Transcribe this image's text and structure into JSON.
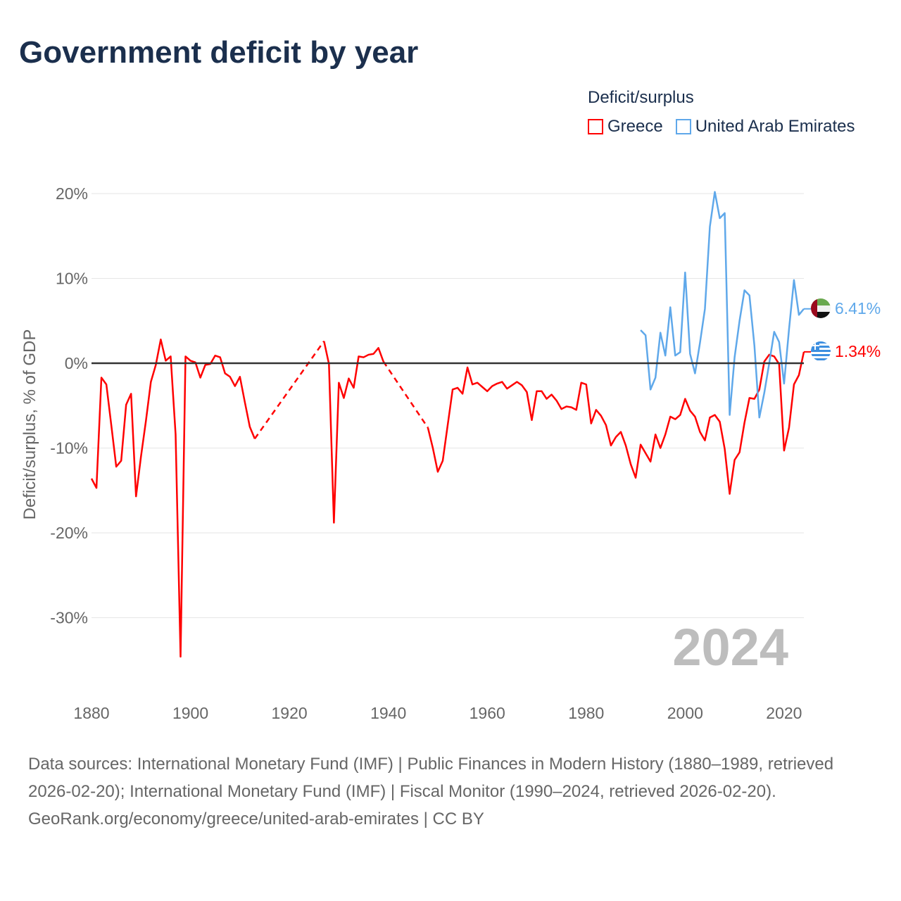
{
  "chart_data": {
    "type": "line",
    "title": "Government deficit by year",
    "xlabel": "",
    "ylabel": "Deficit/surplus, % of GDP",
    "xlim": [
      1880,
      2024
    ],
    "ylim": [
      -35,
      22
    ],
    "x_ticks": [
      "1880",
      "1900",
      "1920",
      "1940",
      "1960",
      "1980",
      "2000",
      "2020"
    ],
    "x_tick_values": [
      1880,
      1900,
      1920,
      1940,
      1960,
      1980,
      2000,
      2020
    ],
    "y_ticks": [
      "20%",
      "10%",
      "0%",
      "-10%",
      "-20%",
      "-30%"
    ],
    "y_tick_values": [
      20,
      10,
      0,
      -10,
      -20,
      -30
    ],
    "grid": true,
    "legend_title": "Deficit/surplus",
    "legend_position": "top-right",
    "year_watermark": "2024",
    "series": [
      {
        "name": "Greece",
        "color": "#ff0000",
        "end_label": "1.34%",
        "flag": "greece",
        "points": [
          [
            1880,
            -13.6
          ],
          [
            1881,
            -14.7
          ],
          [
            1882,
            -1.7
          ],
          [
            1883,
            -2.5
          ],
          [
            1884,
            -7.3
          ],
          [
            1885,
            -12.2
          ],
          [
            1886,
            -11.5
          ],
          [
            1887,
            -4.9
          ],
          [
            1888,
            -3.6
          ],
          [
            1889,
            -15.7
          ],
          [
            1890,
            -11.0
          ],
          [
            1891,
            -6.8
          ],
          [
            1892,
            -2.2
          ],
          [
            1893,
            -0.2
          ],
          [
            1894,
            2.8
          ],
          [
            1895,
            0.3
          ],
          [
            1896,
            0.8
          ],
          [
            1897,
            -8.4
          ],
          [
            1898,
            -34.6
          ],
          [
            1899,
            0.8
          ],
          [
            1900,
            0.3
          ],
          [
            1901,
            0.1
          ],
          [
            1902,
            -1.7
          ],
          [
            1903,
            -0.2
          ],
          [
            1904,
            -0.1
          ],
          [
            1905,
            0.9
          ],
          [
            1906,
            0.7
          ],
          [
            1907,
            -1.2
          ],
          [
            1908,
            -1.6
          ],
          [
            1909,
            -2.7
          ],
          [
            1910,
            -1.6
          ],
          [
            1911,
            -4.6
          ],
          [
            1912,
            -7.5
          ],
          [
            1913,
            -8.9
          ],
          [
            1927,
            2.6
          ],
          [
            1928,
            -0.1
          ],
          [
            1929,
            -18.8
          ],
          [
            1930,
            -2.3
          ],
          [
            1931,
            -4.1
          ],
          [
            1932,
            -1.8
          ],
          [
            1933,
            -2.9
          ],
          [
            1934,
            0.8
          ],
          [
            1935,
            0.7
          ],
          [
            1936,
            1.0
          ],
          [
            1937,
            1.1
          ],
          [
            1938,
            1.8
          ],
          [
            1939,
            0.2
          ],
          [
            1948,
            -7.6
          ],
          [
            1949,
            -10.0
          ],
          [
            1950,
            -12.8
          ],
          [
            1951,
            -11.5
          ],
          [
            1952,
            -7.3
          ],
          [
            1953,
            -3.1
          ],
          [
            1954,
            -2.9
          ],
          [
            1955,
            -3.6
          ],
          [
            1956,
            -0.5
          ],
          [
            1957,
            -2.5
          ],
          [
            1958,
            -2.3
          ],
          [
            1959,
            -2.8
          ],
          [
            1960,
            -3.3
          ],
          [
            1961,
            -2.7
          ],
          [
            1962,
            -2.4
          ],
          [
            1963,
            -2.2
          ],
          [
            1964,
            -3.0
          ],
          [
            1965,
            -2.6
          ],
          [
            1966,
            -2.2
          ],
          [
            1967,
            -2.6
          ],
          [
            1968,
            -3.4
          ],
          [
            1969,
            -6.7
          ],
          [
            1970,
            -3.3
          ],
          [
            1971,
            -3.3
          ],
          [
            1972,
            -4.2
          ],
          [
            1973,
            -3.7
          ],
          [
            1974,
            -4.4
          ],
          [
            1975,
            -5.4
          ],
          [
            1976,
            -5.1
          ],
          [
            1977,
            -5.2
          ],
          [
            1978,
            -5.5
          ],
          [
            1979,
            -2.3
          ],
          [
            1980,
            -2.5
          ],
          [
            1981,
            -7.1
          ],
          [
            1982,
            -5.5
          ],
          [
            1983,
            -6.2
          ],
          [
            1984,
            -7.3
          ],
          [
            1985,
            -9.7
          ],
          [
            1986,
            -8.7
          ],
          [
            1987,
            -8.1
          ],
          [
            1988,
            -9.7
          ],
          [
            1989,
            -11.9
          ],
          [
            1990,
            -13.5
          ],
          [
            1991,
            -9.6
          ],
          [
            1992,
            -10.6
          ],
          [
            1993,
            -11.6
          ],
          [
            1994,
            -8.4
          ],
          [
            1995,
            -10.0
          ],
          [
            1996,
            -8.4
          ],
          [
            1997,
            -6.3
          ],
          [
            1998,
            -6.6
          ],
          [
            1999,
            -6.1
          ],
          [
            2000,
            -4.2
          ],
          [
            2001,
            -5.6
          ],
          [
            2002,
            -6.3
          ],
          [
            2003,
            -8.1
          ],
          [
            2004,
            -9.1
          ],
          [
            2005,
            -6.4
          ],
          [
            2006,
            -6.1
          ],
          [
            2007,
            -6.9
          ],
          [
            2008,
            -10.1
          ],
          [
            2009,
            -15.4
          ],
          [
            2010,
            -11.4
          ],
          [
            2011,
            -10.5
          ],
          [
            2012,
            -7.0
          ],
          [
            2013,
            -4.1
          ],
          [
            2014,
            -4.2
          ],
          [
            2015,
            -3.1
          ],
          [
            2016,
            0.2
          ],
          [
            2017,
            1.0
          ],
          [
            2018,
            0.8
          ],
          [
            2019,
            -0.1
          ],
          [
            2020,
            -10.3
          ],
          [
            2021,
            -7.6
          ],
          [
            2022,
            -2.5
          ],
          [
            2023,
            -1.4
          ],
          [
            2024,
            1.34
          ]
        ]
      },
      {
        "name": "United Arab Emirates",
        "color": "#5fa8ea",
        "end_label": "6.41%",
        "flag": "uae",
        "points": [
          [
            1991,
            3.9
          ],
          [
            1992,
            3.3
          ],
          [
            1993,
            -3.1
          ],
          [
            1994,
            -1.7
          ],
          [
            1995,
            3.6
          ],
          [
            1996,
            0.9
          ],
          [
            1997,
            6.6
          ],
          [
            1998,
            0.9
          ],
          [
            1999,
            1.3
          ],
          [
            2000,
            10.7
          ],
          [
            2001,
            1.1
          ],
          [
            2002,
            -1.2
          ],
          [
            2003,
            2.4
          ],
          [
            2004,
            6.4
          ],
          [
            2005,
            16.1
          ],
          [
            2006,
            20.2
          ],
          [
            2007,
            17.1
          ],
          [
            2008,
            17.7
          ],
          [
            2009,
            -6.1
          ],
          [
            2010,
            0.7
          ],
          [
            2011,
            5.0
          ],
          [
            2012,
            8.6
          ],
          [
            2013,
            8.0
          ],
          [
            2014,
            2.1
          ],
          [
            2015,
            -6.4
          ],
          [
            2016,
            -3.5
          ],
          [
            2017,
            0.0
          ],
          [
            2018,
            3.7
          ],
          [
            2019,
            2.5
          ],
          [
            2020,
            -2.4
          ],
          [
            2021,
            4.0
          ],
          [
            2022,
            9.8
          ],
          [
            2023,
            5.7
          ],
          [
            2024,
            6.41
          ]
        ]
      }
    ]
  },
  "footer": {
    "sources": "Data sources: International Monetary Fund (IMF) | Public Finances in Modern History (1880–1989, retrieved 2026-02-20); International Monetary Fund (IMF) | Fiscal Monitor (1990–2024, retrieved 2026-02-20).",
    "credit": "GeoRank.org/economy/greece/united-arab-emirates | CC BY"
  }
}
